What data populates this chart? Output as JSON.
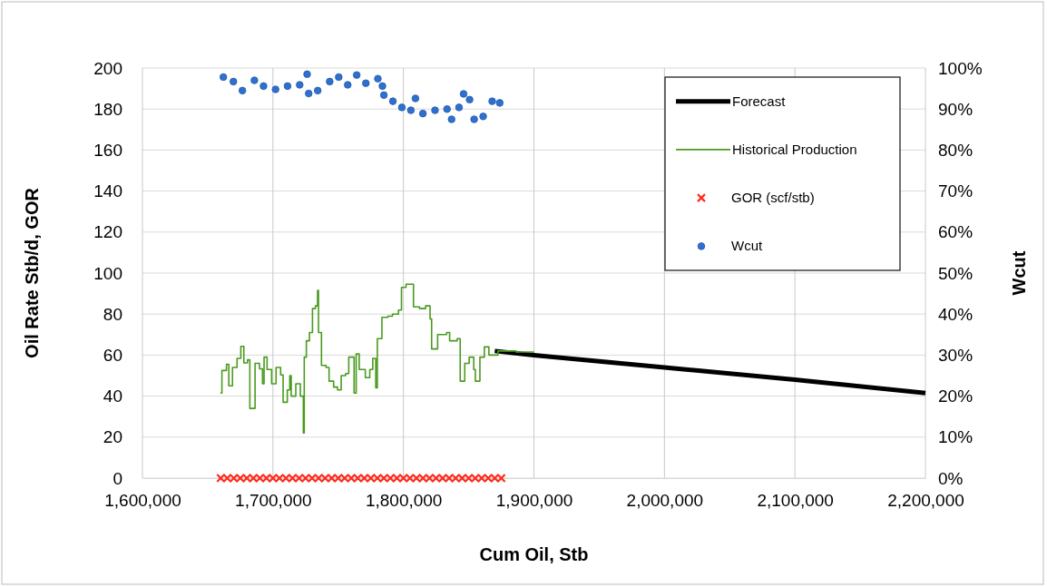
{
  "chart_data": {
    "type": "line",
    "xlabel": "Cum Oil, Stb",
    "ylabel": "Oil Rate Stb/d, GOR",
    "y2label": "Wcut",
    "xlim": [
      1600000,
      2200000
    ],
    "xticks": [
      {
        "value": 1600000,
        "label": "1,600,000"
      },
      {
        "value": 1700000,
        "label": "1,700,000"
      },
      {
        "value": 1800000,
        "label": "1,800,000"
      },
      {
        "value": 1900000,
        "label": "1,900,000"
      },
      {
        "value": 2000000,
        "label": "2,000,000"
      },
      {
        "value": 2100000,
        "label": "2,100,000"
      },
      {
        "value": 2200000,
        "label": "2,200,000"
      }
    ],
    "ylim": [
      0,
      200
    ],
    "yticks": [
      0,
      20,
      40,
      60,
      80,
      100,
      120,
      140,
      160,
      180,
      200
    ],
    "y2lim": [
      0,
      100
    ],
    "y2ticks": [
      {
        "value": 0,
        "label": "0%"
      },
      {
        "value": 10,
        "label": "10%"
      },
      {
        "value": 20,
        "label": "20%"
      },
      {
        "value": 30,
        "label": "30%"
      },
      {
        "value": 40,
        "label": "40%"
      },
      {
        "value": 50,
        "label": "50%"
      },
      {
        "value": 60,
        "label": "60%"
      },
      {
        "value": 70,
        "label": "70%"
      },
      {
        "value": 80,
        "label": "80%"
      },
      {
        "value": 90,
        "label": "90%"
      },
      {
        "value": 100,
        "label": "100%"
      }
    ],
    "grid": true,
    "legend": "top right",
    "series": [
      {
        "name": "Forecast",
        "color": "#000000",
        "marker": "none",
        "x": [
          1870000,
          1900000,
          2000000,
          2100000,
          2200000
        ],
        "values": [
          62,
          60,
          54,
          48,
          41.5
        ]
      },
      {
        "name": "Historical Production",
        "type": "step",
        "color": "#4a9a1e",
        "marker": "none",
        "x": [
          1659700,
          1660900,
          1664400,
          1666200,
          1669000,
          1672500,
          1675400,
          1677700,
          1680500,
          1682300,
          1685100,
          1686300,
          1689700,
          1692000,
          1693200,
          1695500,
          1699000,
          1702400,
          1705900,
          1707800,
          1711000,
          1712900,
          1714000,
          1717500,
          1721000,
          1723300,
          1724000,
          1725600,
          1728000,
          1730300,
          1732600,
          1734200,
          1734900,
          1737200,
          1740700,
          1743000,
          1746500,
          1749500,
          1752300,
          1755700,
          1758100,
          1762200,
          1763800,
          1766100,
          1770800,
          1774200,
          1776500,
          1778800,
          1780000,
          1783500,
          1788100,
          1791600,
          1796200,
          1798500,
          1802000,
          1806600,
          1807700,
          1812300,
          1817000,
          1820400,
          1821600,
          1826200,
          1833100,
          1835400,
          1841200,
          1843500,
          1847000,
          1850400,
          1853900,
          1855100,
          1858600,
          1862000,
          1865500,
          1872400,
          1886300,
          1899600
        ],
        "values": [
          41.5,
          52.5,
          55.5,
          45,
          54,
          58.4,
          64.3,
          56.2,
          57.7,
          34,
          34,
          56,
          53.3,
          46,
          59,
          53,
          46,
          54,
          50.3,
          37,
          43,
          50,
          40,
          46,
          40,
          22,
          59,
          67,
          71,
          82.7,
          84,
          91.6,
          71,
          55,
          54,
          47.3,
          44.4,
          43,
          50,
          51,
          59,
          41.5,
          60.6,
          53,
          49,
          53,
          58.4,
          44,
          68,
          78.4,
          79,
          80,
          82,
          93,
          94.6,
          94.6,
          83.5,
          82.7,
          84,
          77.6,
          63,
          70,
          71,
          67,
          68,
          47.3,
          56,
          59,
          53,
          47.3,
          59,
          64,
          60,
          62,
          61.5,
          61
        ]
      },
      {
        "name": "GOR (scf/stb)",
        "type": "scatter",
        "color": "#ff2a1a",
        "marker": "cross",
        "x": [
          1660000,
          1665000,
          1670000,
          1675000,
          1680000,
          1685000,
          1690000,
          1695000,
          1700000,
          1705000,
          1710000,
          1715000,
          1720000,
          1725000,
          1730000,
          1735000,
          1740000,
          1745000,
          1750000,
          1755000,
          1760000,
          1765000,
          1770000,
          1775000,
          1780000,
          1785000,
          1790000,
          1795000,
          1800000,
          1805000,
          1810000,
          1815000,
          1820000,
          1825000,
          1830000,
          1835000,
          1840000,
          1845000,
          1850000,
          1855000,
          1860000,
          1865000,
          1870000,
          1875000
        ],
        "values": [
          0,
          0,
          0,
          0,
          0,
          0,
          0,
          0,
          0,
          0,
          0,
          0,
          0,
          0,
          0,
          0,
          0,
          0,
          0,
          0,
          0,
          0,
          0,
          0,
          0,
          0,
          0,
          0,
          0,
          0,
          0,
          0,
          0,
          0,
          0,
          0,
          0,
          0,
          0,
          0,
          0,
          0,
          0,
          0
        ]
      },
      {
        "name": "Wcut",
        "type": "scatter",
        "axis": "y2",
        "color": "#2e6fd0",
        "marker": "circle",
        "x": [
          1662000,
          1669700,
          1676600,
          1685800,
          1692800,
          1702000,
          1711200,
          1720500,
          1726200,
          1727400,
          1734300,
          1743500,
          1750400,
          1757300,
          1764200,
          1771200,
          1780400,
          1783900,
          1785000,
          1791900,
          1798800,
          1805700,
          1809200,
          1814900,
          1824200,
          1833400,
          1836900,
          1842600,
          1846100,
          1850700,
          1854200,
          1861100,
          1868000,
          1873800
        ],
        "values": [
          97.8,
          96.7,
          94.5,
          97,
          95.6,
          94.8,
          95.6,
          95.9,
          98.5,
          93.8,
          94.5,
          96.7,
          97.8,
          95.9,
          98.3,
          96.3,
          97.4,
          95.6,
          93.4,
          91.9,
          90.4,
          89.7,
          92.6,
          88.9,
          89.7,
          90,
          87.5,
          90.4,
          93.7,
          92.3,
          87.5,
          88.2,
          91.9,
          91.5
        ]
      }
    ]
  }
}
